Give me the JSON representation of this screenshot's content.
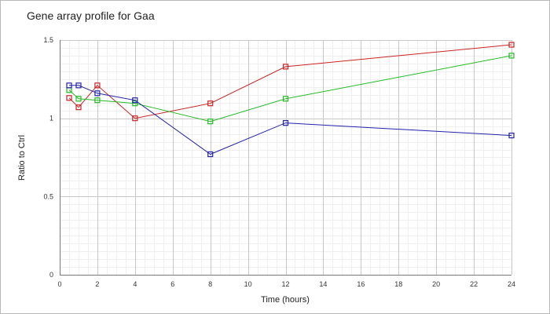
{
  "chart_data": {
    "type": "line",
    "title": "Gene array profile for Gaa",
    "xlabel": "Time (hours)",
    "ylabel": "Ratio to Ctrl",
    "xlim": [
      0,
      24
    ],
    "ylim": [
      0,
      1.5
    ],
    "xticks": [
      0,
      2,
      4,
      6,
      8,
      10,
      12,
      14,
      16,
      18,
      20,
      22,
      24
    ],
    "yticks": [
      0,
      0.5,
      1,
      1.5
    ],
    "ytick_labels": [
      "0",
      "0.5",
      "1",
      "1.5"
    ],
    "grid": true,
    "marker": "square",
    "series": [
      {
        "color": "#cc2222",
        "x": [
          0.5,
          1,
          2,
          4,
          8,
          12,
          24
        ],
        "y": [
          1.13,
          1.07,
          1.21,
          1.0,
          1.095,
          1.33,
          1.47
        ]
      },
      {
        "color": "#22bb22",
        "x": [
          0.5,
          1,
          2,
          4,
          8,
          12,
          24
        ],
        "y": [
          1.18,
          1.125,
          1.115,
          1.095,
          0.98,
          1.125,
          1.4
        ]
      },
      {
        "color": "#2222aa",
        "x": [
          0.5,
          1,
          2,
          4,
          8,
          12,
          24
        ],
        "y": [
          1.21,
          1.21,
          1.16,
          1.115,
          0.77,
          0.97,
          0.89
        ]
      }
    ]
  }
}
